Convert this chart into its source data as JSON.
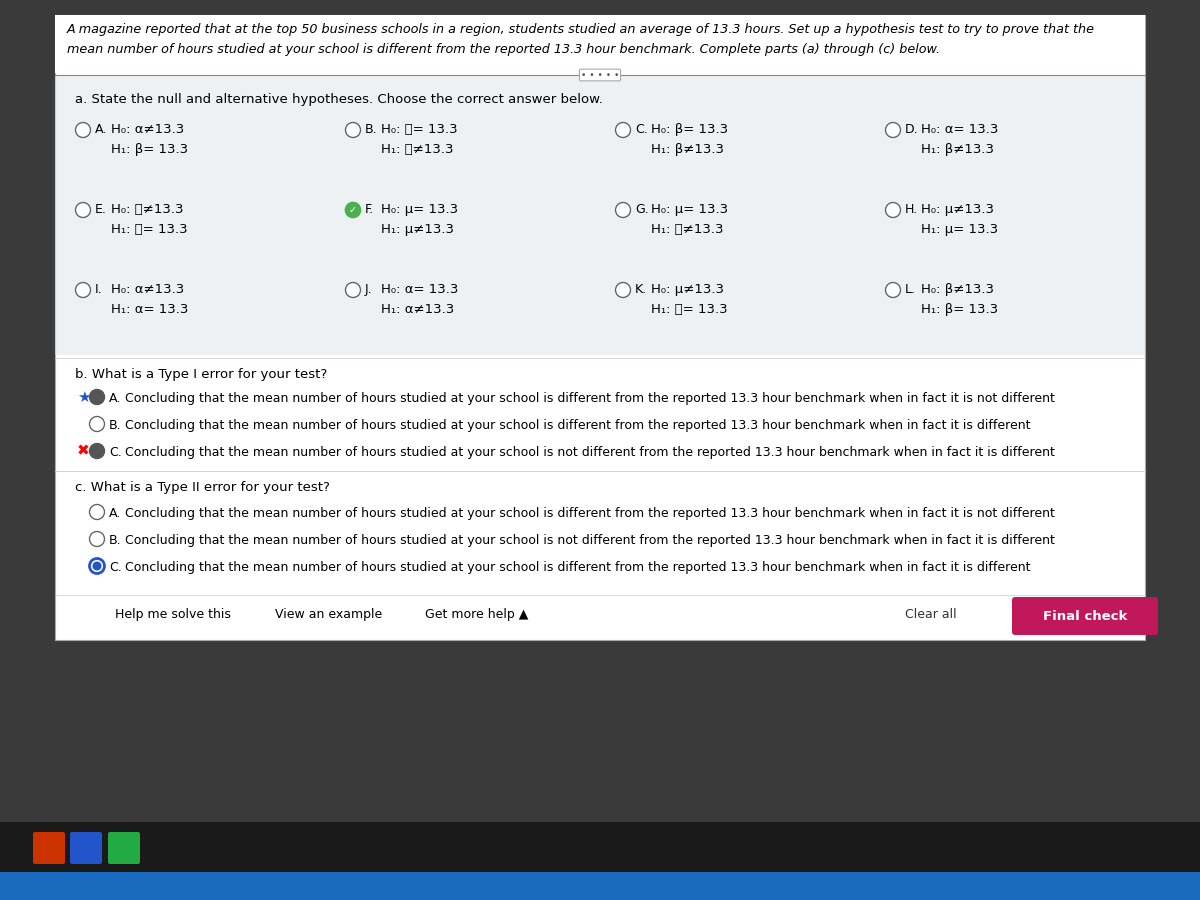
{
  "title_line1": "A magazine reported that at the top 50 business schools in a region, students studied an average of 13.3 hours. Set up a hypothesis test to try to prove that the",
  "title_line2": "mean number of hours studied at your school is different from the reported 13.3 hour benchmark. Complete parts (a) through (c) below.",
  "part_a_label": "a. State the null and alternative hypotheses. Choose the correct answer below.",
  "part_b_label": "b. What is a Type I error for your test?",
  "part_c_label": "c. What is a Type II error for your test?",
  "monitor_bg": "#3a3a3a",
  "panel_bg": "#ffffff",
  "section_bg": "#e8e8e8",
  "options_a": [
    {
      "id": "A",
      "h0": "H₀: α≠13.3",
      "h1": "H₁: β= 13.3",
      "selected": false,
      "checkmark": false
    },
    {
      "id": "B",
      "h0": "H₀: ᶋ= 13.3",
      "h1": "H₁: ᶋ≠13.3",
      "selected": false,
      "checkmark": false
    },
    {
      "id": "C",
      "h0": "H₀: β= 13.3",
      "h1": "H₁: β≠13.3",
      "selected": false,
      "checkmark": false
    },
    {
      "id": "D",
      "h0": "H₀: α= 13.3",
      "h1": "H₁: β≠13.3",
      "selected": false,
      "checkmark": false
    },
    {
      "id": "E",
      "h0": "H₀: ᶋ≠13.3",
      "h1": "H₁: ᶋ= 13.3",
      "selected": false,
      "checkmark": false
    },
    {
      "id": "F",
      "h0": "H₀: μ= 13.3",
      "h1": "H₁: μ≠13.3",
      "selected": true,
      "checkmark": true
    },
    {
      "id": "G",
      "h0": "H₀: μ= 13.3",
      "h1": "H₁: ᶋ≠13.3",
      "selected": false,
      "checkmark": false
    },
    {
      "id": "H",
      "h0": "H₀: μ≠13.3",
      "h1": "H₁: μ= 13.3",
      "selected": false,
      "checkmark": false
    },
    {
      "id": "I",
      "h0": "H₀: α≠13.3",
      "h1": "H₁: α= 13.3",
      "selected": false,
      "checkmark": false
    },
    {
      "id": "J",
      "h0": "H₀: α= 13.3",
      "h1": "H₁: α≠13.3",
      "selected": false,
      "checkmark": false
    },
    {
      "id": "K",
      "h0": "H₀: μ≠13.3",
      "h1": "H₁: ᶋ= 13.3",
      "selected": false,
      "checkmark": false
    },
    {
      "id": "L",
      "h0": "H₀: β≠13.3",
      "h1": "H₁: β= 13.3",
      "selected": false,
      "checkmark": false
    }
  ],
  "options_b": [
    {
      "id": "A",
      "text": "Concluding that the mean number of hours studied at your school is different from the reported 13.3 hour benchmark when in fact it is not different",
      "selected": true,
      "star": true,
      "xmark": false
    },
    {
      "id": "B",
      "text": "Concluding that the mean number of hours studied at your school is different from the reported 13.3 hour benchmark when in fact it is different",
      "selected": false,
      "star": false,
      "xmark": false
    },
    {
      "id": "C",
      "text": "Concluding that the mean number of hours studied at your school is not different from the reported 13.3 hour benchmark when in fact it is different",
      "selected": false,
      "star": false,
      "xmark": true
    }
  ],
  "options_c": [
    {
      "id": "A",
      "text": "Concluding that the mean number of hours studied at your school is different from the reported 13.3 hour benchmark when in fact it is not different",
      "selected": false
    },
    {
      "id": "B",
      "text": "Concluding that the mean number of hours studied at your school is not different from the reported 13.3 hour benchmark when in fact it is different",
      "selected": false
    },
    {
      "id": "C",
      "text": "Concluding that the mean number of hours studied at your school is different from the reported 13.3 hour benchmark when in fact it is different",
      "selected": true
    }
  ],
  "footer_links": [
    "Help me solve this",
    "View an example",
    "Get more help ▲"
  ],
  "footer_clear": "Clear all",
  "footer_check": "Final check",
  "check_btn_color": "#c0185a",
  "taskbar_color": "#1a6bbf",
  "bezel_color": "#2e2e2e"
}
